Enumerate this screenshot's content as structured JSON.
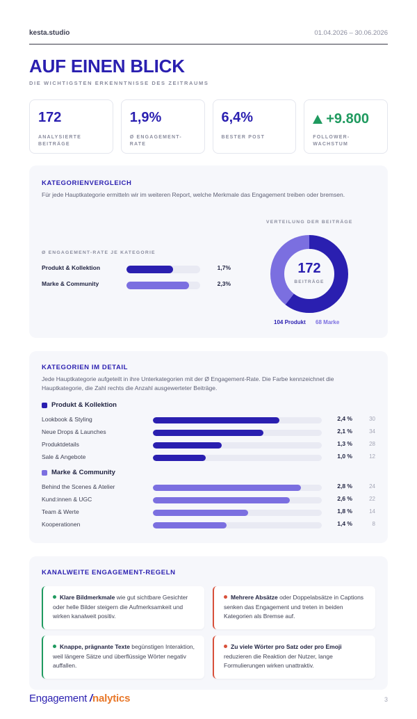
{
  "header": {
    "brand": "kesta.studio",
    "date_range": "01.04.2026 – 30.06.2026"
  },
  "page": {
    "title": "AUF EINEN BLICK",
    "subtitle": "DIE WICHTIGSTEN ERKENNTNISSE DES ZEITRAUMS"
  },
  "kpis": [
    {
      "value": "172",
      "label": "ANALYSIERTE BEITRÄGE"
    },
    {
      "value": "1,9%",
      "label": "Ø ENGAGEMENT-RATE"
    },
    {
      "value": "6,4%",
      "label": "BESTER POST"
    },
    {
      "value": "+9.800",
      "label": "FOLLOWER-WACHSTUM",
      "trend": "up",
      "color": "#1f9a5f"
    }
  ],
  "category_comparison": {
    "title": "KATEGORIENVERGLEICH",
    "description": "Für jede Hauptkategorie ermitteln wir im weiteren Report, welche Merkmale das Engagement treiben oder bremsen.",
    "rate_heading": "Ø ENGAGEMENT-RATE JE KATEGORIE",
    "distribution_heading": "VERTEILUNG DER BEITRÄGE",
    "rows": [
      {
        "label": "Produkt & Kollektion",
        "value": "1,7%",
        "rate": 1.7,
        "color": "#2a1fb0"
      },
      {
        "label": "Marke & Community",
        "value": "2,3%",
        "rate": 2.3,
        "color": "#7b6fe0"
      }
    ],
    "rate_max": 2.7,
    "donut": {
      "total": "172",
      "total_label": "BEITRÄGE",
      "segments": [
        {
          "label": "104 Produkt",
          "count": 104,
          "color": "#2a1fb0"
        },
        {
          "label": "68 Marke",
          "count": 68,
          "color": "#7b6fe0"
        }
      ]
    }
  },
  "category_detail": {
    "title": "KATEGORIEN IM DETAIL",
    "description": "Jede Hauptkategorie aufgeteilt in ihre Unterkategorien mit der Ø Engagement-Rate. Die Farbe kennzeichnet die Hauptkategorie, die Zahl rechts die Anzahl ausgewerteter Beiträge.",
    "rate_max": 3.2,
    "groups": [
      {
        "name": "Produkt & Kollektion",
        "color": "#2a1fb0",
        "items": [
          {
            "label": "Lookbook & Styling",
            "value": "2,4 %",
            "rate": 2.4,
            "count": "30"
          },
          {
            "label": "Neue Drops & Launches",
            "value": "2,1 %",
            "rate": 2.1,
            "count": "34"
          },
          {
            "label": "Produktdetails",
            "value": "1,3 %",
            "rate": 1.3,
            "count": "28"
          },
          {
            "label": "Sale & Angebote",
            "value": "1,0 %",
            "rate": 1.0,
            "count": "12"
          }
        ]
      },
      {
        "name": "Marke & Community",
        "color": "#7b6fe0",
        "items": [
          {
            "label": "Behind the Scenes & Atelier",
            "value": "2,8 %",
            "rate": 2.8,
            "count": "24"
          },
          {
            "label": "Kund:innen & UGC",
            "value": "2,6 %",
            "rate": 2.6,
            "count": "22"
          },
          {
            "label": "Team & Werte",
            "value": "1,8 %",
            "rate": 1.8,
            "count": "14"
          },
          {
            "label": "Kooperationen",
            "value": "1,4 %",
            "rate": 1.4,
            "count": "8"
          }
        ]
      }
    ]
  },
  "rules": {
    "title": "KANALWEITE ENGAGEMENT-REGELN",
    "items": [
      {
        "type": "positive",
        "bold": "Klare Bildmerkmale",
        "text": " wie gut sichtbare Gesichter oder helle Bilder steigern die Aufmerksamkeit und wirken kanalweit positiv."
      },
      {
        "type": "negative",
        "bold": "Mehrere Absätze",
        "text": " oder Doppelabsätze in Captions senken das Engagement und treten in beiden Kategorien als Bremse auf."
      },
      {
        "type": "positive",
        "bold": "Knappe, prägnante Texte",
        "text": " begünstigen Interaktion, weil längere Sätze und überflüssige Wörter negativ auffallen."
      },
      {
        "type": "negative",
        "bold": "Zu viele Wörter pro Satz oder pro Emoji",
        "text": " reduzieren die Reaktion der Nutzer, lange Formulierungen wirken unattraktiv."
      }
    ]
  },
  "footer": {
    "logo_part1": "Engagement ",
    "logo_slash": "/",
    "logo_part2": "nalytics",
    "page_number": "3"
  },
  "colors": {
    "primary": "#2a1fb0",
    "secondary": "#7b6fe0",
    "positive": "#1f9a5f",
    "negative": "#d8503a",
    "logo_accent": "#e8782a"
  }
}
